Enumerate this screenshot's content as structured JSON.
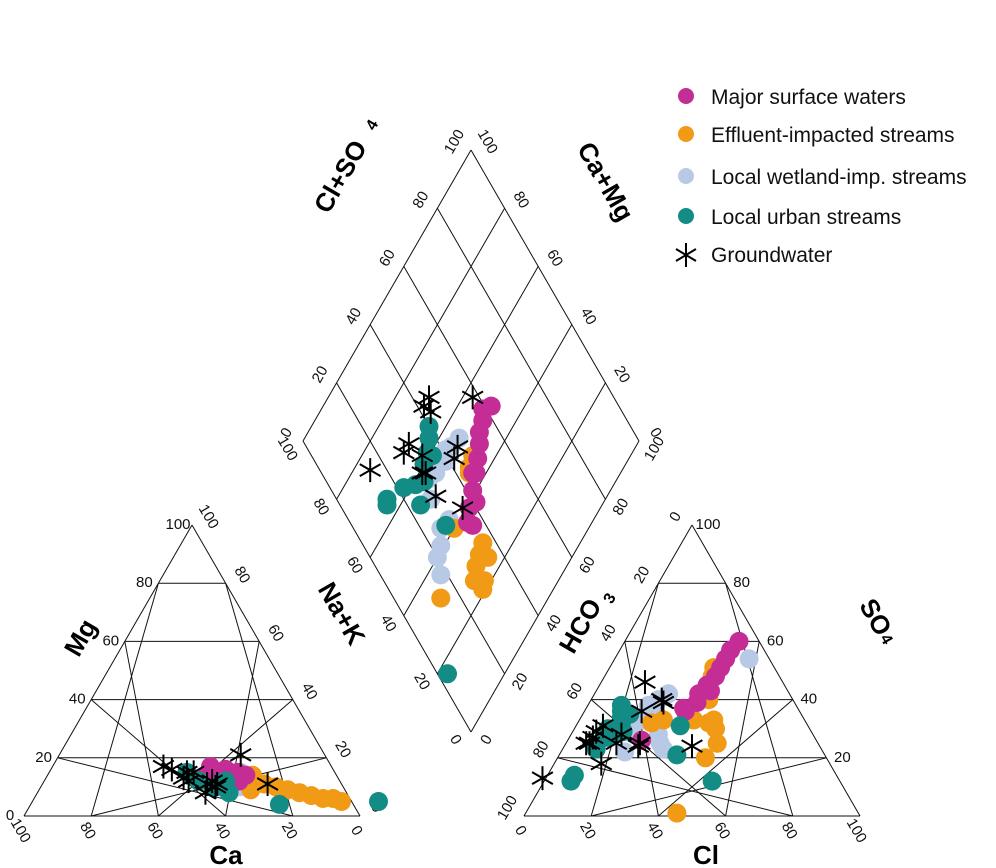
{
  "chart_data": {
    "type": "scatter",
    "subtype": "piper-diagram",
    "colors": {
      "major": "#c42d95",
      "effluent": "#f09a16",
      "wetland": "#b8c9e6",
      "urban": "#128c85",
      "groundwater": "#000000"
    },
    "legend": {
      "placement": "top-right",
      "entries": [
        {
          "key": "major",
          "label": "Major surface waters",
          "marker": "circle"
        },
        {
          "key": "effluent",
          "label": "Effluent-impacted streams",
          "marker": "circle"
        },
        {
          "key": "wetland",
          "label": "Local wetland-imp. streams",
          "marker": "circle"
        },
        {
          "key": "urban",
          "label": "Local urban streams",
          "marker": "circle"
        },
        {
          "key": "groundwater",
          "label": "Groundwater",
          "marker": "asterisk"
        }
      ]
    },
    "ticks": {
      "levels": [
        0,
        20,
        40,
        60,
        80,
        100
      ],
      "left_mg": [
        "0",
        "20",
        "40",
        "60",
        "80",
        "100"
      ],
      "left_ca": [
        "100",
        "80",
        "60",
        "40",
        "20",
        "0"
      ],
      "left_nak": [
        "100",
        "80",
        "60",
        "40",
        "20",
        "0"
      ],
      "right_so4": [
        "20",
        "40",
        "60",
        "80",
        "100"
      ],
      "right_cl": [
        "0",
        "20",
        "40",
        "60",
        "80",
        "100"
      ],
      "right_hco3": [
        "100",
        "80",
        "60",
        "40",
        "20",
        "0"
      ],
      "dia_clso4": [
        "0",
        "20",
        "40",
        "60",
        "80",
        "100"
      ],
      "dia_camg": [
        "100",
        "80",
        "60",
        "40",
        "20",
        "0"
      ],
      "dia_lower_left": [
        "100",
        "80",
        "60",
        "40",
        "20",
        "0"
      ],
      "dia_lower_right": [
        "0",
        "20",
        "40",
        "60",
        "80",
        "100"
      ]
    },
    "axis_labels": {
      "mg": "Mg",
      "na_k": "Na+K",
      "ca": "Ca",
      "hco3": "HCO",
      "hco3_sub": "3",
      "so4": "SO",
      "so4_sub": "4",
      "cl": "Cl",
      "cl_so4": "Cl+SO",
      "cl_so4_sub": "4",
      "ca_mg": "Ca+Mg"
    },
    "cation_triangle": {
      "axes": [
        "Ca",
        "Mg",
        "Na+K"
      ],
      "points": [
        {
          "s": "major",
          "ca": 38,
          "mg": 12
        },
        {
          "s": "major",
          "ca": 35,
          "mg": 14
        },
        {
          "s": "major",
          "ca": 32,
          "mg": 16
        },
        {
          "s": "major",
          "ca": 29,
          "mg": 15
        },
        {
          "s": "major",
          "ca": 33,
          "mg": 11
        },
        {
          "s": "major",
          "ca": 30,
          "mg": 12
        },
        {
          "s": "major",
          "ca": 27,
          "mg": 14
        },
        {
          "s": "major",
          "ca": 36,
          "mg": 17
        },
        {
          "s": "major",
          "ca": 40,
          "mg": 13
        },
        {
          "s": "major",
          "ca": 31,
          "mg": 13
        },
        {
          "s": "effluent",
          "ca": 29,
          "mg": 12
        },
        {
          "s": "effluent",
          "ca": 26,
          "mg": 12
        },
        {
          "s": "effluent",
          "ca": 23,
          "mg": 11
        },
        {
          "s": "effluent",
          "ca": 20,
          "mg": 10
        },
        {
          "s": "effluent",
          "ca": 17,
          "mg": 9
        },
        {
          "s": "effluent",
          "ca": 14,
          "mg": 8
        },
        {
          "s": "effluent",
          "ca": 11,
          "mg": 7
        },
        {
          "s": "effluent",
          "ca": 8,
          "mg": 6
        },
        {
          "s": "effluent",
          "ca": 5,
          "mg": 6
        },
        {
          "s": "effluent",
          "ca": 3,
          "mg": 5
        },
        {
          "s": "effluent",
          "ca": 28,
          "mg": 9
        },
        {
          "s": "effluent",
          "ca": 25,
          "mg": 14
        },
        {
          "s": "wetland",
          "ca": 40,
          "mg": 11
        },
        {
          "s": "wetland",
          "ca": 37,
          "mg": 10
        },
        {
          "s": "wetland",
          "ca": 34,
          "mg": 9
        },
        {
          "s": "wetland",
          "ca": 31,
          "mg": 10
        },
        {
          "s": "wetland",
          "ca": 28,
          "mg": 15
        },
        {
          "s": "wetland",
          "ca": 33,
          "mg": 13
        },
        {
          "s": "wetland",
          "ca": 30,
          "mg": 14
        },
        {
          "s": "urban",
          "ca": 44,
          "mg": 15
        },
        {
          "s": "urban",
          "ca": 42,
          "mg": 12
        },
        {
          "s": "urban",
          "ca": 38,
          "mg": 10
        },
        {
          "s": "urban",
          "ca": 35,
          "mg": 8
        },
        {
          "s": "urban",
          "ca": 34,
          "mg": 12
        },
        {
          "s": "urban",
          "ca": 22,
          "mg": 4
        },
        {
          "s": "urban",
          "ca": -8,
          "mg": 5
        },
        {
          "s": "groundwater",
          "ca": 50,
          "mg": 17
        },
        {
          "s": "groundwater",
          "ca": 48,
          "mg": 16
        },
        {
          "s": "groundwater",
          "ca": 46,
          "mg": 13
        },
        {
          "s": "groundwater",
          "ca": 45,
          "mg": 12
        },
        {
          "s": "groundwater",
          "ca": 44,
          "mg": 15
        },
        {
          "s": "groundwater",
          "ca": 42,
          "mg": 15
        },
        {
          "s": "groundwater",
          "ca": 40,
          "mg": 11
        },
        {
          "s": "groundwater",
          "ca": 38,
          "mg": 10
        },
        {
          "s": "groundwater",
          "ca": 37,
          "mg": 11
        },
        {
          "s": "groundwater",
          "ca": 42,
          "mg": 8
        },
        {
          "s": "groundwater",
          "ca": 25,
          "mg": 21
        },
        {
          "s": "groundwater",
          "ca": 22,
          "mg": 11
        },
        {
          "s": "groundwater",
          "ca": 38,
          "mg": 12
        }
      ]
    },
    "anion_triangle": {
      "axes": [
        "Cl",
        "SO4",
        "HCO3"
      ],
      "points": [
        {
          "s": "major",
          "cl": 34,
          "so4": 60
        },
        {
          "s": "major",
          "cl": 33,
          "so4": 57
        },
        {
          "s": "major",
          "cl": 33,
          "so4": 54
        },
        {
          "s": "major",
          "cl": 33,
          "so4": 51
        },
        {
          "s": "major",
          "cl": 33,
          "so4": 48
        },
        {
          "s": "major",
          "cl": 32,
          "so4": 45
        },
        {
          "s": "major",
          "cl": 31,
          "so4": 42
        },
        {
          "s": "major",
          "cl": 32,
          "so4": 39
        },
        {
          "s": "major",
          "cl": 30,
          "so4": 36
        },
        {
          "s": "major",
          "cl": 34,
          "so4": 43
        },
        {
          "s": "major",
          "cl": 22,
          "so4": 26
        },
        {
          "s": "major",
          "cl": 29,
          "so4": 37
        },
        {
          "s": "effluent",
          "cl": 31,
          "so4": 51
        },
        {
          "s": "effluent",
          "cl": 32,
          "so4": 48
        },
        {
          "s": "effluent",
          "cl": 35,
          "so4": 40
        },
        {
          "s": "effluent",
          "cl": 39,
          "so4": 32
        },
        {
          "s": "effluent",
          "cl": 42,
          "so4": 30
        },
        {
          "s": "effluent",
          "cl": 40,
          "so4": 33
        },
        {
          "s": "effluent",
          "cl": 45,
          "so4": 25
        },
        {
          "s": "effluent",
          "cl": 44,
          "so4": 20
        },
        {
          "s": "effluent",
          "cl": 22,
          "so4": 32
        },
        {
          "s": "effluent",
          "cl": 25,
          "so4": 33
        },
        {
          "s": "effluent",
          "cl": 34,
          "so4": 33
        },
        {
          "s": "effluent",
          "cl": 45,
          "so4": 1
        },
        {
          "s": "wetland",
          "cl": 40,
          "so4": 54
        },
        {
          "s": "wetland",
          "cl": 22,
          "so4": 42
        },
        {
          "s": "wetland",
          "cl": 20,
          "so4": 40
        },
        {
          "s": "wetland",
          "cl": 18,
          "so4": 38
        },
        {
          "s": "wetland",
          "cl": 21,
          "so4": 35
        },
        {
          "s": "wetland",
          "cl": 19,
          "so4": 33
        },
        {
          "s": "wetland",
          "cl": 25,
          "so4": 33
        },
        {
          "s": "wetland",
          "cl": 17,
          "so4": 30
        },
        {
          "s": "wetland",
          "cl": 26,
          "so4": 28
        },
        {
          "s": "wetland",
          "cl": 28,
          "so4": 25
        },
        {
          "s": "wetland",
          "cl": 19,
          "so4": 22
        },
        {
          "s": "wetland",
          "cl": 30,
          "so4": 23
        },
        {
          "s": "urban",
          "cl": 10,
          "so4": 38
        },
        {
          "s": "urban",
          "cl": 11,
          "so4": 36
        },
        {
          "s": "urban",
          "cl": 12,
          "so4": 34
        },
        {
          "s": "urban",
          "cl": 14,
          "so4": 35
        },
        {
          "s": "urban",
          "cl": 13,
          "so4": 32
        },
        {
          "s": "urban",
          "cl": 10,
          "so4": 30
        },
        {
          "s": "urban",
          "cl": 12,
          "so4": 30
        },
        {
          "s": "urban",
          "cl": 13,
          "so4": 28
        },
        {
          "s": "urban",
          "cl": 11,
          "so4": 27
        },
        {
          "s": "urban",
          "cl": 10,
          "so4": 23
        },
        {
          "s": "urban",
          "cl": 15,
          "so4": 29
        },
        {
          "s": "urban",
          "cl": 31,
          "so4": 31
        },
        {
          "s": "urban",
          "cl": 8,
          "so4": 14
        },
        {
          "s": "urban",
          "cl": 8,
          "so4": 12
        },
        {
          "s": "urban",
          "cl": 50,
          "so4": 12
        },
        {
          "s": "urban",
          "cl": 35,
          "so4": 21
        },
        {
          "s": "groundwater",
          "cl": 13,
          "so4": 46
        },
        {
          "s": "groundwater",
          "cl": 17,
          "so4": 36
        },
        {
          "s": "groundwater",
          "cl": 21,
          "so4": 40
        },
        {
          "s": "groundwater",
          "cl": 22,
          "so4": 39
        },
        {
          "s": "groundwater",
          "cl": 8,
          "so4": 31
        },
        {
          "s": "groundwater",
          "cl": 7,
          "so4": 29
        },
        {
          "s": "groundwater",
          "cl": 7,
          "so4": 27
        },
        {
          "s": "groundwater",
          "cl": 15,
          "so4": 28
        },
        {
          "s": "groundwater",
          "cl": 15,
          "so4": 25
        },
        {
          "s": "groundwater",
          "cl": 7,
          "so4": 25
        },
        {
          "s": "groundwater",
          "cl": 22,
          "so4": 24
        },
        {
          "s": "groundwater",
          "cl": 14,
          "so4": 18
        },
        {
          "s": "groundwater",
          "cl": 22,
          "so4": 25
        },
        {
          "s": "groundwater",
          "cl": 38,
          "so4": 24
        },
        {
          "s": "groundwater",
          "cl": 6,
          "so4": 25
        },
        {
          "s": "groundwater",
          "cl": -1,
          "so4": 13
        }
      ]
    },
    "diamond": {
      "axes": [
        "Cl+SO4",
        "Ca+Mg"
      ],
      "points": [
        {
          "s": "major",
          "clso4": 62,
          "camg": 50
        },
        {
          "s": "major",
          "clso4": 57,
          "camg": 50
        },
        {
          "s": "major",
          "clso4": 54,
          "camg": 49
        },
        {
          "s": "major",
          "clso4": 49,
          "camg": 45
        },
        {
          "s": "major",
          "clso4": 46,
          "camg": 43
        },
        {
          "s": "major",
          "clso4": 42,
          "camg": 41
        },
        {
          "s": "major",
          "clso4": 38,
          "camg": 39
        },
        {
          "s": "major",
          "clso4": 35,
          "camg": 37
        },
        {
          "s": "major",
          "clso4": 41,
          "camg": 38
        },
        {
          "s": "major",
          "clso4": 45,
          "camg": 44
        },
        {
          "s": "major",
          "clso4": 52,
          "camg": 47
        },
        {
          "s": "major",
          "clso4": 59,
          "camg": 52
        },
        {
          "s": "major",
          "clso4": 36,
          "camg": 35
        },
        {
          "s": "effluent",
          "clso4": 48,
          "camg": 47
        },
        {
          "s": "effluent",
          "clso4": 44,
          "camg": 45
        },
        {
          "s": "effluent",
          "clso4": 45,
          "camg": 46
        },
        {
          "s": "effluent",
          "clso4": 36,
          "camg": 29
        },
        {
          "s": "effluent",
          "clso4": 30,
          "camg": 27
        },
        {
          "s": "effluent",
          "clso4": 33,
          "camg": 28
        },
        {
          "s": "effluent",
          "clso4": 35,
          "camg": 25
        },
        {
          "s": "effluent",
          "clso4": 30,
          "camg": 22
        },
        {
          "s": "effluent",
          "clso4": 28,
          "camg": 21
        },
        {
          "s": "effluent",
          "clso4": 30,
          "camg": 40
        },
        {
          "s": "effluent",
          "clso4": 14,
          "camg": 32
        },
        {
          "s": "effluent",
          "clso4": 27,
          "camg": 25
        },
        {
          "s": "wetland",
          "clso4": 47,
          "camg": 54
        },
        {
          "s": "wetland",
          "clso4": 43,
          "camg": 55
        },
        {
          "s": "wetland",
          "clso4": 41,
          "camg": 56
        },
        {
          "s": "wetland",
          "clso4": 39,
          "camg": 54
        },
        {
          "s": "wetland",
          "clso4": 36,
          "camg": 58
        },
        {
          "s": "wetland",
          "clso4": 34,
          "camg": 55
        },
        {
          "s": "wetland",
          "clso4": 31,
          "camg": 56
        },
        {
          "s": "wetland",
          "clso4": 28,
          "camg": 52
        },
        {
          "s": "wetland",
          "clso4": 26,
          "camg": 44
        },
        {
          "s": "wetland",
          "clso4": 23,
          "camg": 41
        },
        {
          "s": "wetland",
          "clso4": 20,
          "camg": 40
        },
        {
          "s": "wetland",
          "clso4": 18,
          "camg": 36
        },
        {
          "s": "wetland",
          "clso4": 30,
          "camg": 43
        },
        {
          "s": "urban",
          "clso4": 40,
          "camg": 65
        },
        {
          "s": "urban",
          "clso4": 38,
          "camg": 63
        },
        {
          "s": "urban",
          "clso4": 35,
          "camg": 61
        },
        {
          "s": "urban",
          "clso4": 32,
          "camg": 60
        },
        {
          "s": "urban",
          "clso4": 29,
          "camg": 57
        },
        {
          "s": "urban",
          "clso4": 26,
          "camg": 59
        },
        {
          "s": "urban",
          "clso4": 22,
          "camg": 62
        },
        {
          "s": "urban",
          "clso4": 15,
          "camg": 65
        },
        {
          "s": "urban",
          "clso4": 14,
          "camg": 64
        },
        {
          "s": "urban",
          "clso4": 24,
          "camg": 54
        },
        {
          "s": "urban",
          "clso4": 28,
          "camg": 43
        },
        {
          "s": "urban",
          "clso4": 3,
          "camg": 17
        },
        {
          "s": "urban",
          "clso4": 36,
          "camg": 59
        },
        {
          "s": "groundwater",
          "clso4": 58,
          "camg": 57
        },
        {
          "s": "groundwater",
          "clso4": 43,
          "camg": 67
        },
        {
          "s": "groundwater",
          "clso4": 45,
          "camg": 70
        },
        {
          "s": "groundwater",
          "clso4": 42,
          "camg": 70
        },
        {
          "s": "groundwater",
          "clso4": 33,
          "camg": 62
        },
        {
          "s": "groundwater",
          "clso4": 30,
          "camg": 59
        },
        {
          "s": "groundwater",
          "clso4": 31,
          "camg": 58
        },
        {
          "s": "groundwater",
          "clso4": 28,
          "camg": 68
        },
        {
          "s": "groundwater",
          "clso4": 31,
          "camg": 68
        },
        {
          "s": "groundwater",
          "clso4": 45,
          "camg": 53
        },
        {
          "s": "groundwater",
          "clso4": 42,
          "camg": 52
        },
        {
          "s": "groundwater",
          "clso4": 36,
          "camg": 41
        },
        {
          "s": "groundwater",
          "clso4": 15,
          "camg": 75
        },
        {
          "s": "groundwater",
          "clso4": 30,
          "camg": 51
        }
      ]
    }
  }
}
